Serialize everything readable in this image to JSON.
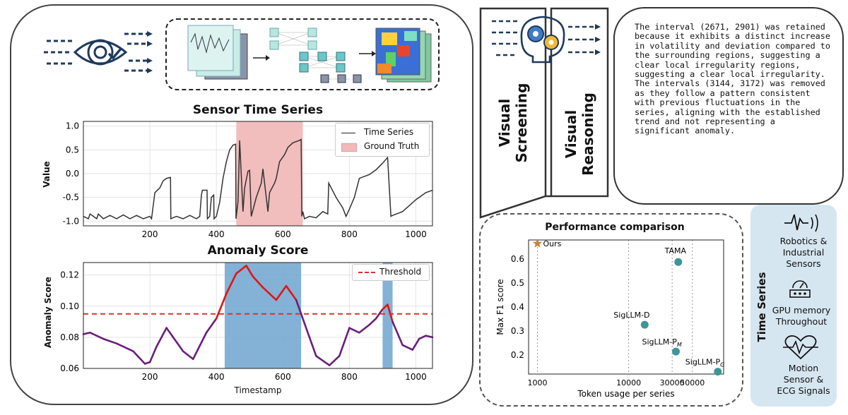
{
  "colors": {
    "truth": "#f1b9b9",
    "anomaly_band": "#6fa4cf",
    "threshold": "#e03030",
    "score_low": "#6a1f7a",
    "score_high": "#e01515",
    "ts_line": "#333333",
    "point": "#3d9697",
    "star": "#c9843a",
    "ts_panel": "#d6e6f1"
  },
  "icons": [
    "eye-check-icon",
    "brain-gears-icon",
    "sensor-waveform-icon",
    "gpu-gauge-icon",
    "heart-ecg-icon"
  ],
  "sensor_plot": {
    "title": "Sensor Time Series",
    "ylabel": "Value",
    "legend": {
      "series": "Time Series",
      "truth": "Ground Truth"
    }
  },
  "anomaly_plot": {
    "title": "Anomaly Score",
    "ylabel": "Anomaly Score",
    "xlabel": "Timestamp",
    "legend": {
      "threshold": "Threshold"
    }
  },
  "screening": {
    "label": "Visual Screening",
    "line1": "Visual",
    "line2": "Screening"
  },
  "reasoning": {
    "label": "Visual Reasoning",
    "line1": "Visual",
    "line2": "Reasoning",
    "text": "The interval (2671, 2901) was retained because it exhibits a distinct increase in volatility and deviation compared to the surrounding regions, suggesting a clear local irregularity regions, suggesting a clear local irregularity. The intervals (3144, 3172) was removed as they follow a pattern consistent with previous fluctuations in the series, aligning with the established trend and not representing a significant anomaly."
  },
  "performance": {
    "title": "Performance comparison"
  },
  "time_series_panel": {
    "title": "Time Series",
    "items": [
      {
        "line1": "Robotics &",
        "line2": "Industrial",
        "line3": "Sensors"
      },
      {
        "line1": "GPU memory",
        "line2": "Throughout"
      },
      {
        "line1": "Motion",
        "line2": "Sensor &",
        "line3": "ECG Signals"
      }
    ]
  },
  "chart_data": [
    {
      "type": "line",
      "title": "Sensor Time Series",
      "xlabel": "",
      "ylabel": "Value",
      "xlim": [
        0,
        1050
      ],
      "ylim": [
        -1.1,
        1.1
      ],
      "xticks": [
        "200",
        "400",
        "600",
        "800",
        "1000"
      ],
      "yticks": [
        "1.0",
        "0.5",
        "0.0",
        "-0.5",
        "-1.0"
      ],
      "grid": true,
      "legend_position": "top-right",
      "ground_truth_interval": [
        460,
        660
      ],
      "series": [
        {
          "name": "Time Series",
          "x": [
            0,
            15,
            20,
            40,
            45,
            60,
            80,
            100,
            120,
            140,
            160,
            180,
            200,
            205,
            215,
            230,
            240,
            250,
            262,
            263,
            280,
            300,
            320,
            340,
            350,
            355,
            358,
            372,
            373,
            380,
            385,
            392,
            393,
            400,
            410,
            420,
            430,
            440,
            450,
            458,
            459,
            465,
            470,
            480,
            485,
            495,
            500,
            505,
            520,
            535,
            540,
            555,
            560,
            575,
            580,
            590,
            600,
            605,
            615,
            630,
            650,
            655,
            657,
            660,
            665,
            680,
            700,
            720,
            735,
            738,
            760,
            780,
            790,
            800,
            815,
            830,
            860,
            880,
            900,
            910,
            915,
            925,
            930,
            960,
            1000,
            1030,
            1050
          ],
          "y": [
            -0.9,
            -0.95,
            -0.85,
            -0.95,
            -0.85,
            -0.95,
            -0.88,
            -0.95,
            -0.87,
            -0.95,
            -0.88,
            -0.95,
            -0.9,
            -0.95,
            -0.4,
            -0.3,
            -0.15,
            -0.1,
            -0.08,
            -0.95,
            -0.9,
            -0.95,
            -0.88,
            -0.95,
            -0.9,
            -0.45,
            -0.35,
            -0.35,
            -0.95,
            -0.9,
            -0.5,
            -0.45,
            -0.95,
            -0.9,
            -0.6,
            -0.1,
            0.25,
            0.5,
            0.6,
            0.62,
            -0.95,
            -0.6,
            0.7,
            -0.8,
            -0.3,
            0.05,
            0.07,
            -0.9,
            -0.5,
            -0.2,
            0.1,
            -0.8,
            -0.4,
            -0.2,
            -0.1,
            0.25,
            0.35,
            0.4,
            0.55,
            0.65,
            0.7,
            0.72,
            -0.9,
            -0.8,
            -0.95,
            -0.9,
            -0.93,
            -0.8,
            -0.85,
            -0.2,
            -0.5,
            -0.72,
            -0.9,
            -0.75,
            -0.5,
            -0.1,
            -0.02,
            0.08,
            0.22,
            0.3,
            0.34,
            -0.9,
            -0.88,
            -0.8,
            -0.55,
            -0.4,
            -0.35
          ]
        }
      ]
    },
    {
      "type": "line",
      "title": "Anomaly Score",
      "xlabel": "Timestamp",
      "ylabel": "Anomaly Score",
      "xlim": [
        0,
        1050
      ],
      "ylim": [
        0.06,
        0.128
      ],
      "xticks": [
        "200",
        "400",
        "600",
        "800",
        "1000"
      ],
      "yticks": [
        "0.12",
        "0.10",
        "0.08",
        "0.06"
      ],
      "threshold": 0.095,
      "detected_intervals": [
        [
          425,
          655
        ],
        [
          900,
          930
        ]
      ],
      "grid": true,
      "legend_position": "top-right",
      "series": [
        {
          "name": "",
          "x": [
            0,
            20,
            60,
            100,
            150,
            185,
            200,
            220,
            250,
            270,
            300,
            330,
            370,
            400,
            430,
            460,
            490,
            510,
            540,
            580,
            610,
            640,
            680,
            700,
            740,
            770,
            800,
            830,
            860,
            880,
            900,
            915,
            930,
            960,
            990,
            1010,
            1030,
            1050
          ],
          "y": [
            0.082,
            0.083,
            0.079,
            0.076,
            0.071,
            0.063,
            0.064,
            0.074,
            0.086,
            0.08,
            0.071,
            0.066,
            0.083,
            0.092,
            0.108,
            0.121,
            0.126,
            0.119,
            0.112,
            0.104,
            0.113,
            0.104,
            0.08,
            0.068,
            0.062,
            0.068,
            0.086,
            0.083,
            0.088,
            0.092,
            0.098,
            0.101,
            0.09,
            0.075,
            0.072,
            0.079,
            0.081,
            0.08
          ]
        }
      ]
    },
    {
      "type": "scatter",
      "title": "Performance comparison",
      "xlabel": "Token usage per series",
      "ylabel": "Max F1 score",
      "xscale": "log",
      "xticks": [
        "1000",
        "10000",
        "30000",
        "50000"
      ],
      "yticks": [
        "0.6",
        "0.5",
        "0.4",
        "0.3",
        "0.2"
      ],
      "ylim": [
        0.12,
        0.68
      ],
      "series": [
        {
          "name": "",
          "points": [
            {
              "label": "Ours",
              "x": 1000,
              "y": 0.665,
              "marker": "star"
            },
            {
              "label": "TAMA",
              "x": 35000,
              "y": 0.588
            },
            {
              "label": "SigLLM-D",
              "x": 15000,
              "y": 0.326
            },
            {
              "label": "SigLLM-P",
              "sub": "M",
              "x": 33000,
              "y": 0.214
            },
            {
              "label": "SigLLM-P",
              "sub": "G",
              "x": 95000,
              "y": 0.13
            }
          ]
        }
      ]
    }
  ]
}
